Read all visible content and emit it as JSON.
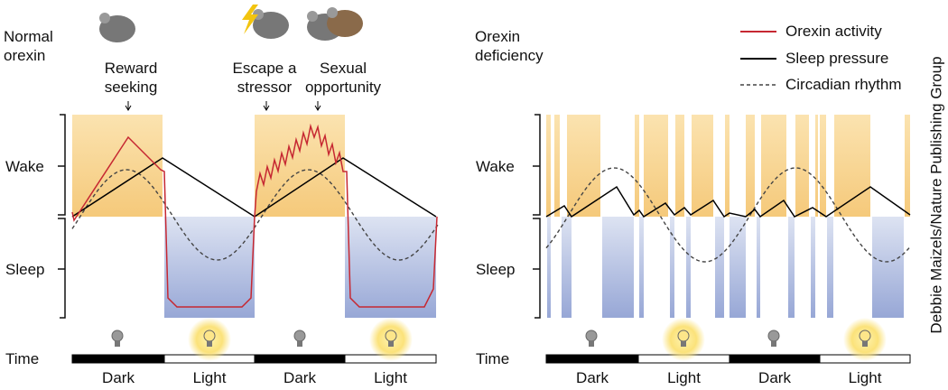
{
  "left_panel": {
    "title": "Normal orexin",
    "annotations": [
      "Reward seeking",
      "Escape a stressor",
      "Sexual opportunity"
    ],
    "y_labels": [
      "Wake",
      "Sleep"
    ],
    "time_label": "Time",
    "periods": [
      "Dark",
      "Light",
      "Dark",
      "Light"
    ]
  },
  "right_panel": {
    "title": "Orexin deficiency",
    "y_labels": [
      "Wake",
      "Sleep"
    ],
    "time_label": "Time",
    "periods": [
      "Dark",
      "Light",
      "Dark",
      "Light"
    ]
  },
  "legend": [
    "Orexin activity",
    "Sleep pressure",
    "Circadian rhythm"
  ],
  "credit": "Debbie Maizels/Nature Publishing Group"
}
